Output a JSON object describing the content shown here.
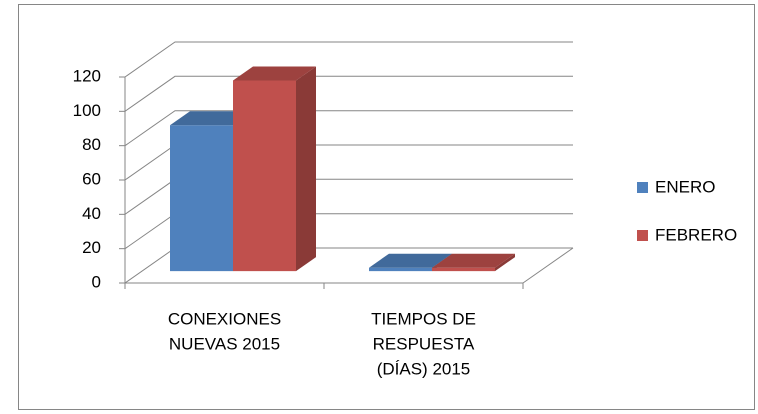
{
  "chart_data": {
    "type": "bar3d",
    "categories": [
      [
        "CONEXIONES",
        "NUEVAS 2015"
      ],
      [
        "TIEMPOS DE",
        "RESPUESTA",
        "(DÍAS) 2015"
      ]
    ],
    "series": [
      {
        "name": "ENERO",
        "color": "#4f81bd",
        "values": [
          85,
          2
        ]
      },
      {
        "name": "FEBRERO",
        "color": "#c0504d",
        "values": [
          111,
          2
        ]
      }
    ],
    "ylim": [
      0,
      120
    ],
    "yticks": [
      0,
      20,
      40,
      60,
      80,
      100,
      120
    ],
    "grid": true,
    "legend": "right"
  }
}
